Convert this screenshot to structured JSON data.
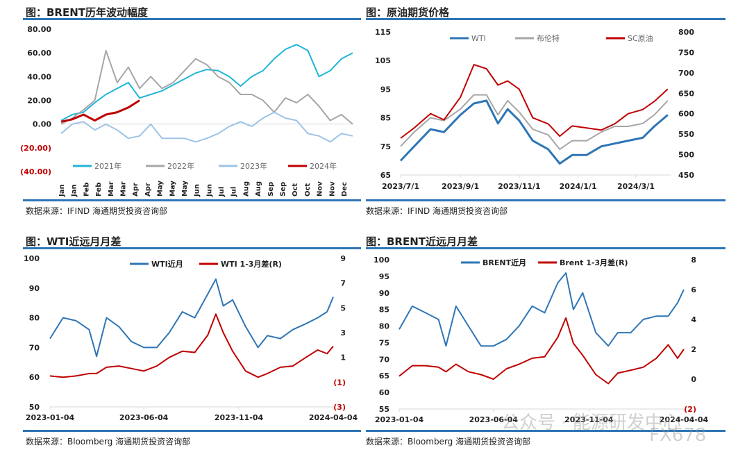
{
  "chart_data": [
    {
      "type": "line",
      "title": "图：BRENT历年波动幅度",
      "source": "数据来源：IFIND   海通期货投资咨询部",
      "x_tick_labels": [
        "Jan",
        "Jan",
        "Feb",
        "Feb",
        "Mar",
        "Mar",
        "Apr",
        "Apr",
        "May",
        "May",
        "May",
        "Jun",
        "Jun",
        "Jul",
        "Jul",
        "Aug",
        "Aug",
        "Sep",
        "Sep",
        "Oct",
        "Oct",
        "Nov",
        "Nov",
        "Dec"
      ],
      "y_tick_labels": [
        "80.00",
        "60.00",
        "40.00",
        "20.00",
        "0.00",
        "(20.00)",
        "(40.00)"
      ],
      "ylim": [
        -40,
        80
      ],
      "x_sampling": "semi-monthly through the year",
      "legend": "bottom",
      "series": [
        {
          "name": "2021年",
          "color": "#1fb5d8",
          "values": [
            3,
            8,
            10,
            18,
            25,
            30,
            35,
            22,
            25,
            28,
            33,
            38,
            43,
            46,
            45,
            40,
            32,
            40,
            45,
            55,
            63,
            67,
            62,
            40,
            45,
            55,
            60
          ]
        },
        {
          "name": "2022年",
          "color": "#a6a6a6",
          "values": [
            0,
            5,
            12,
            20,
            62,
            35,
            48,
            30,
            40,
            30,
            35,
            45,
            55,
            50,
            40,
            35,
            25,
            25,
            20,
            10,
            22,
            18,
            25,
            15,
            3,
            8,
            0
          ]
        },
        {
          "name": "2023年",
          "color": "#9dc3e6",
          "values": [
            -8,
            0,
            2,
            -5,
            0,
            -5,
            -12,
            -10,
            0,
            -12,
            -12,
            -12,
            -15,
            -12,
            -8,
            -2,
            2,
            -2,
            5,
            10,
            5,
            3,
            -8,
            -10,
            -15,
            -8,
            -10
          ]
        },
        {
          "name": "2024年",
          "color": "#c00000",
          "values": [
            2,
            4,
            8,
            3,
            8,
            10,
            14,
            20
          ]
        }
      ]
    },
    {
      "type": "line",
      "title": "图：原油期货价格",
      "source": "数据来源：IFIND   海通期货投资咨询部",
      "x_tick_labels": [
        "2023/7/1",
        "2023/9/1",
        "2023/11/1",
        "2024/1/1",
        "2024/3/1"
      ],
      "x_tick_dates": [
        "2023-07-01",
        "2023-09-01",
        "2023-11-01",
        "2024-01-01",
        "2024-03-01"
      ],
      "y_tick_labels": [
        "115",
        "105",
        "95",
        "85",
        "75",
        "65"
      ],
      "ylim": [
        65,
        115
      ],
      "y2_tick_labels": [
        "800",
        "750",
        "700",
        "650",
        "600",
        "550",
        "500",
        "450"
      ],
      "y2lim": [
        450,
        800
      ],
      "legend": "top",
      "x": [
        "2023-07-01",
        "2023-07-15",
        "2023-08-01",
        "2023-08-15",
        "2023-09-01",
        "2023-09-15",
        "2023-09-28",
        "2023-10-10",
        "2023-10-20",
        "2023-11-01",
        "2023-11-15",
        "2023-12-01",
        "2023-12-13",
        "2023-12-26",
        "2024-01-10",
        "2024-01-25",
        "2024-02-08",
        "2024-02-22",
        "2024-03-08",
        "2024-03-20",
        "2024-04-03"
      ],
      "series": [
        {
          "name": "WTI",
          "color": "#2e75b6",
          "axis": "left",
          "values": [
            70,
            75,
            81,
            80,
            86,
            90,
            91,
            83,
            88,
            84,
            77,
            74,
            69,
            72,
            72,
            75,
            76,
            77,
            78,
            82,
            86
          ]
        },
        {
          "name": "布伦特",
          "color": "#a6a6a6",
          "axis": "left",
          "values": [
            75,
            80,
            85,
            84,
            88,
            93,
            93,
            86,
            91,
            87,
            81,
            79,
            74,
            77,
            77,
            80,
            82,
            82,
            83,
            86,
            91
          ]
        },
        {
          "name": "SC原油",
          "color": "#c00000",
          "axis": "right",
          "values": [
            540,
            565,
            600,
            585,
            640,
            720,
            710,
            670,
            680,
            660,
            590,
            575,
            545,
            570,
            565,
            560,
            575,
            600,
            610,
            630,
            660
          ]
        }
      ]
    },
    {
      "type": "line",
      "title": "图：WTI近远月月差",
      "source": "数据来源：Bloomberg   海通期货投资咨询部",
      "x_tick_labels": [
        "2023-01-04",
        "2023-06-04",
        "2023-11-04",
        "2024-04-04"
      ],
      "x_tick_dates": [
        "2023-01-04",
        "2023-06-04",
        "2023-11-04",
        "2024-04-04"
      ],
      "y_tick_labels": [
        "100",
        "90",
        "80",
        "70",
        "60",
        "50"
      ],
      "ylim": [
        50,
        100
      ],
      "y2_tick_labels": [
        "9",
        "7",
        "5",
        "3",
        "1",
        "(1)",
        "(3)"
      ],
      "y2lim": [
        -3,
        9
      ],
      "legend": "top",
      "x": [
        "2023-01-04",
        "2023-01-25",
        "2023-02-15",
        "2023-03-08",
        "2023-03-20",
        "2023-04-05",
        "2023-04-25",
        "2023-05-15",
        "2023-06-04",
        "2023-06-25",
        "2023-07-15",
        "2023-08-05",
        "2023-08-25",
        "2023-09-15",
        "2023-09-28",
        "2023-10-10",
        "2023-10-25",
        "2023-11-15",
        "2023-12-05",
        "2023-12-20",
        "2024-01-10",
        "2024-01-30",
        "2024-02-20",
        "2024-03-10",
        "2024-03-25",
        "2024-04-04"
      ],
      "series": [
        {
          "name": "WTI近月",
          "color": "#2e75b6",
          "axis": "left",
          "values": [
            73,
            80,
            79,
            76,
            67,
            80,
            77,
            72,
            70,
            70,
            75,
            82,
            80,
            88,
            93,
            84,
            86,
            77,
            70,
            74,
            73,
            76,
            78,
            80,
            82,
            87
          ]
        },
        {
          "name": "WTI 1-3月差(R)",
          "color": "#c00000",
          "axis": "right",
          "values": [
            -0.5,
            -0.6,
            -0.5,
            -0.3,
            -0.3,
            0.2,
            0.3,
            0.1,
            -0.1,
            0.3,
            1.0,
            1.5,
            1.4,
            2.8,
            4.5,
            3.0,
            1.5,
            -0.1,
            -0.6,
            -0.3,
            0.2,
            0.3,
            1.0,
            1.6,
            1.3,
            1.9
          ]
        }
      ]
    },
    {
      "type": "line",
      "title": "图：BRENT近远月月差",
      "source": "数据来源：Bloomberg   海通期货投资咨询部",
      "x_tick_labels": [
        "2023-01-04",
        "2023-06-04",
        "2023-11-04",
        "2024-04-04"
      ],
      "x_tick_dates": [
        "2023-01-04",
        "2023-06-04",
        "2023-11-04",
        "2024-04-04"
      ],
      "y_tick_labels": [
        "100",
        "95",
        "90",
        "85",
        "80",
        "75",
        "70",
        "65",
        "60",
        "55"
      ],
      "ylim": [
        55,
        100
      ],
      "y2_tick_labels": [
        "8",
        "6",
        "4",
        "2",
        "0",
        "(2)"
      ],
      "y2lim": [
        -2,
        8
      ],
      "legend": "top",
      "x": [
        "2023-01-04",
        "2023-01-25",
        "2023-02-15",
        "2023-03-08",
        "2023-03-20",
        "2023-04-05",
        "2023-04-25",
        "2023-05-15",
        "2023-06-04",
        "2023-06-25",
        "2023-07-15",
        "2023-08-05",
        "2023-08-25",
        "2023-09-15",
        "2023-09-28",
        "2023-10-10",
        "2023-10-25",
        "2023-11-15",
        "2023-12-05",
        "2023-12-20",
        "2024-01-10",
        "2024-01-30",
        "2024-02-20",
        "2024-03-10",
        "2024-03-25",
        "2024-04-04"
      ],
      "series": [
        {
          "name": "BRENT近月",
          "color": "#2e75b6",
          "axis": "left",
          "values": [
            79,
            86,
            84,
            82,
            74,
            86,
            80,
            74,
            74,
            76,
            80,
            86,
            84,
            93,
            96,
            85,
            90,
            78,
            74,
            78,
            78,
            82,
            83,
            83,
            87,
            91
          ]
        },
        {
          "name": "Brent 1-3月差(R)",
          "color": "#c00000",
          "axis": "right",
          "values": [
            0.2,
            0.9,
            0.9,
            0.8,
            0.5,
            1.0,
            0.5,
            0.3,
            0.0,
            0.7,
            1.0,
            1.4,
            1.5,
            2.8,
            4.1,
            2.4,
            1.6,
            0.3,
            -0.3,
            0.4,
            0.6,
            0.8,
            1.4,
            2.3,
            1.4,
            2.0
          ]
        }
      ]
    }
  ],
  "colors": {
    "rule": "#2e75b6",
    "negative_label": "#c00000"
  },
  "watermark": {
    "text": "公众号 · 能源研发中心",
    "brand": "FX678"
  }
}
